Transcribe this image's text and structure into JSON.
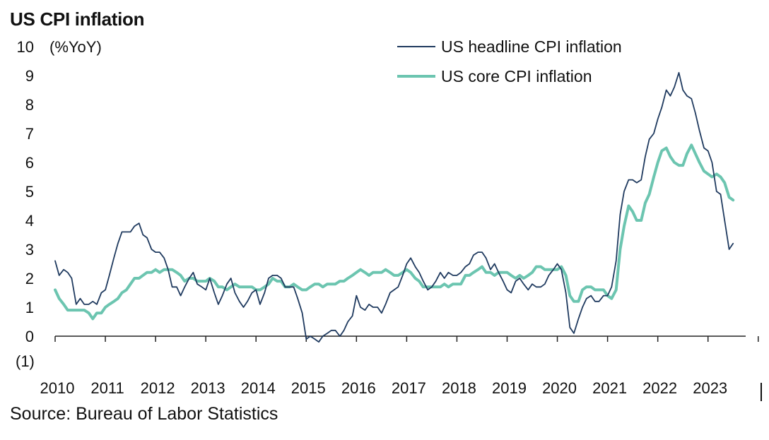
{
  "title": "US CPI inflation",
  "source": "Source: Bureau of Labor Statistics",
  "chart_data": {
    "type": "line",
    "title": "US CPI inflation",
    "ylabel": "(%YoY)",
    "xlabel": "",
    "ylim": [
      -1,
      10
    ],
    "xlim": [
      2010.0,
      2023.75
    ],
    "y_ticks": [
      -1,
      0,
      1,
      2,
      3,
      4,
      5,
      6,
      7,
      8,
      9,
      10
    ],
    "y_tick_labels": [
      "(1)",
      "0",
      "1",
      "2",
      "3",
      "4",
      "5",
      "6",
      "7",
      "8",
      "9",
      "10"
    ],
    "x_tick_labels": [
      "2010",
      "2011",
      "2012",
      "2013",
      "2014",
      "2015",
      "2016",
      "2017",
      "2018",
      "2019",
      "2020",
      "2021",
      "2022",
      "2023"
    ],
    "grid": false,
    "legend_position": "top-right",
    "series": [
      {
        "name": "US headline CPI inflation",
        "color": "#1f3a5f",
        "line_width": "thin",
        "x": [
          2010.0,
          2010.08,
          2010.17,
          2010.25,
          2010.33,
          2010.42,
          2010.5,
          2010.58,
          2010.67,
          2010.75,
          2010.83,
          2010.92,
          2011.0,
          2011.08,
          2011.17,
          2011.25,
          2011.33,
          2011.42,
          2011.5,
          2011.58,
          2011.67,
          2011.75,
          2011.83,
          2011.92,
          2012.0,
          2012.08,
          2012.17,
          2012.25,
          2012.33,
          2012.42,
          2012.5,
          2012.58,
          2012.67,
          2012.75,
          2012.83,
          2012.92,
          2013.0,
          2013.08,
          2013.17,
          2013.25,
          2013.33,
          2013.42,
          2013.5,
          2013.58,
          2013.67,
          2013.75,
          2013.83,
          2013.92,
          2014.0,
          2014.08,
          2014.17,
          2014.25,
          2014.33,
          2014.42,
          2014.5,
          2014.58,
          2014.67,
          2014.75,
          2014.83,
          2014.92,
          2015.0,
          2015.08,
          2015.17,
          2015.25,
          2015.33,
          2015.42,
          2015.5,
          2015.58,
          2015.67,
          2015.75,
          2015.83,
          2015.92,
          2016.0,
          2016.08,
          2016.17,
          2016.25,
          2016.33,
          2016.42,
          2016.5,
          2016.58,
          2016.67,
          2016.75,
          2016.83,
          2016.92,
          2017.0,
          2017.08,
          2017.17,
          2017.25,
          2017.33,
          2017.42,
          2017.5,
          2017.58,
          2017.67,
          2017.75,
          2017.83,
          2017.92,
          2018.0,
          2018.08,
          2018.17,
          2018.25,
          2018.33,
          2018.42,
          2018.5,
          2018.58,
          2018.67,
          2018.75,
          2018.83,
          2018.92,
          2019.0,
          2019.08,
          2019.17,
          2019.25,
          2019.33,
          2019.42,
          2019.5,
          2019.58,
          2019.67,
          2019.75,
          2019.83,
          2019.92,
          2020.0,
          2020.08,
          2020.17,
          2020.25,
          2020.33,
          2020.42,
          2020.5,
          2020.58,
          2020.67,
          2020.75,
          2020.83,
          2020.92,
          2021.0,
          2021.08,
          2021.17,
          2021.25,
          2021.33,
          2021.42,
          2021.5,
          2021.58,
          2021.67,
          2021.75,
          2021.83,
          2021.92,
          2022.0,
          2022.08,
          2022.17,
          2022.25,
          2022.33,
          2022.42,
          2022.5,
          2022.58,
          2022.67,
          2022.75,
          2022.83,
          2022.92,
          2023.0,
          2023.08,
          2023.17,
          2023.25,
          2023.33,
          2023.42,
          2023.5
        ],
        "values": [
          2.6,
          2.1,
          2.3,
          2.2,
          2.0,
          1.1,
          1.3,
          1.1,
          1.1,
          1.2,
          1.1,
          1.5,
          1.6,
          2.1,
          2.7,
          3.2,
          3.6,
          3.6,
          3.6,
          3.8,
          3.9,
          3.5,
          3.4,
          3.0,
          2.9,
          2.9,
          2.7,
          2.3,
          1.7,
          1.7,
          1.4,
          1.7,
          2.0,
          2.2,
          1.8,
          1.7,
          1.6,
          2.0,
          1.5,
          1.1,
          1.4,
          1.8,
          2.0,
          1.5,
          1.2,
          1.0,
          1.2,
          1.5,
          1.6,
          1.1,
          1.5,
          2.0,
          2.1,
          2.1,
          2.0,
          1.7,
          1.7,
          1.7,
          1.3,
          0.8,
          -0.1,
          0.0,
          -0.1,
          -0.2,
          0.0,
          0.1,
          0.2,
          0.2,
          0.0,
          0.2,
          0.5,
          0.7,
          1.4,
          1.0,
          0.9,
          1.1,
          1.0,
          1.0,
          0.8,
          1.1,
          1.5,
          1.6,
          1.7,
          2.1,
          2.5,
          2.7,
          2.4,
          2.2,
          1.9,
          1.6,
          1.7,
          1.9,
          2.2,
          2.0,
          2.2,
          2.1,
          2.1,
          2.2,
          2.4,
          2.5,
          2.8,
          2.9,
          2.9,
          2.7,
          2.3,
          2.5,
          2.2,
          1.9,
          1.6,
          1.5,
          1.9,
          2.0,
          1.8,
          1.6,
          1.8,
          1.7,
          1.7,
          1.8,
          2.1,
          2.3,
          2.5,
          2.3,
          1.5,
          0.3,
          0.1,
          0.6,
          1.0,
          1.3,
          1.4,
          1.2,
          1.2,
          1.4,
          1.4,
          1.7,
          2.6,
          4.2,
          5.0,
          5.4,
          5.4,
          5.3,
          5.4,
          6.2,
          6.8,
          7.0,
          7.5,
          7.9,
          8.5,
          8.3,
          8.6,
          9.1,
          8.5,
          8.3,
          8.2,
          7.7,
          7.1,
          6.5,
          6.4,
          6.0,
          5.0,
          4.9,
          4.0,
          3.0,
          3.2
        ]
      },
      {
        "name": "US core CPI inflation",
        "color": "#6cc5b0",
        "line_width": "thick",
        "x": [
          2010.0,
          2010.08,
          2010.17,
          2010.25,
          2010.33,
          2010.42,
          2010.5,
          2010.58,
          2010.67,
          2010.75,
          2010.83,
          2010.92,
          2011.0,
          2011.08,
          2011.17,
          2011.25,
          2011.33,
          2011.42,
          2011.5,
          2011.58,
          2011.67,
          2011.75,
          2011.83,
          2011.92,
          2012.0,
          2012.08,
          2012.17,
          2012.25,
          2012.33,
          2012.42,
          2012.5,
          2012.58,
          2012.67,
          2012.75,
          2012.83,
          2012.92,
          2013.0,
          2013.08,
          2013.17,
          2013.25,
          2013.33,
          2013.42,
          2013.5,
          2013.58,
          2013.67,
          2013.75,
          2013.83,
          2013.92,
          2014.0,
          2014.08,
          2014.17,
          2014.25,
          2014.33,
          2014.42,
          2014.5,
          2014.58,
          2014.67,
          2014.75,
          2014.83,
          2014.92,
          2015.0,
          2015.08,
          2015.17,
          2015.25,
          2015.33,
          2015.42,
          2015.5,
          2015.58,
          2015.67,
          2015.75,
          2015.83,
          2015.92,
          2016.0,
          2016.08,
          2016.17,
          2016.25,
          2016.33,
          2016.42,
          2016.5,
          2016.58,
          2016.67,
          2016.75,
          2016.83,
          2016.92,
          2017.0,
          2017.08,
          2017.17,
          2017.25,
          2017.33,
          2017.42,
          2017.5,
          2017.58,
          2017.67,
          2017.75,
          2017.83,
          2017.92,
          2018.0,
          2018.08,
          2018.17,
          2018.25,
          2018.33,
          2018.42,
          2018.5,
          2018.58,
          2018.67,
          2018.75,
          2018.83,
          2018.92,
          2019.0,
          2019.08,
          2019.17,
          2019.25,
          2019.33,
          2019.42,
          2019.5,
          2019.58,
          2019.67,
          2019.75,
          2019.83,
          2019.92,
          2020.0,
          2020.08,
          2020.17,
          2020.25,
          2020.33,
          2020.42,
          2020.5,
          2020.58,
          2020.67,
          2020.75,
          2020.83,
          2020.92,
          2021.0,
          2021.08,
          2021.17,
          2021.25,
          2021.33,
          2021.42,
          2021.5,
          2021.58,
          2021.67,
          2021.75,
          2021.83,
          2021.92,
          2022.0,
          2022.08,
          2022.17,
          2022.25,
          2022.33,
          2022.42,
          2022.5,
          2022.58,
          2022.67,
          2022.75,
          2022.83,
          2022.92,
          2023.0,
          2023.08,
          2023.17,
          2023.25,
          2023.33,
          2023.42,
          2023.5
        ],
        "values": [
          1.6,
          1.3,
          1.1,
          0.9,
          0.9,
          0.9,
          0.9,
          0.9,
          0.8,
          0.6,
          0.8,
          0.8,
          1.0,
          1.1,
          1.2,
          1.3,
          1.5,
          1.6,
          1.8,
          2.0,
          2.0,
          2.1,
          2.2,
          2.2,
          2.3,
          2.2,
          2.3,
          2.3,
          2.3,
          2.2,
          2.1,
          1.9,
          2.0,
          2.0,
          1.9,
          1.9,
          1.9,
          2.0,
          1.9,
          1.7,
          1.7,
          1.6,
          1.7,
          1.8,
          1.7,
          1.7,
          1.7,
          1.7,
          1.6,
          1.6,
          1.7,
          1.8,
          2.0,
          1.9,
          1.9,
          1.7,
          1.7,
          1.8,
          1.7,
          1.6,
          1.6,
          1.7,
          1.8,
          1.8,
          1.7,
          1.8,
          1.8,
          1.8,
          1.9,
          1.9,
          2.0,
          2.1,
          2.2,
          2.3,
          2.2,
          2.1,
          2.2,
          2.2,
          2.2,
          2.3,
          2.2,
          2.1,
          2.1,
          2.2,
          2.3,
          2.2,
          2.0,
          1.9,
          1.7,
          1.7,
          1.7,
          1.7,
          1.7,
          1.8,
          1.7,
          1.8,
          1.8,
          1.8,
          2.1,
          2.1,
          2.2,
          2.3,
          2.4,
          2.2,
          2.2,
          2.1,
          2.2,
          2.2,
          2.2,
          2.1,
          2.0,
          2.1,
          2.0,
          2.1,
          2.2,
          2.4,
          2.4,
          2.3,
          2.3,
          2.3,
          2.3,
          2.4,
          2.1,
          1.4,
          1.2,
          1.2,
          1.6,
          1.7,
          1.7,
          1.6,
          1.6,
          1.6,
          1.4,
          1.3,
          1.6,
          3.0,
          3.8,
          4.5,
          4.3,
          4.0,
          4.0,
          4.6,
          4.9,
          5.5,
          6.0,
          6.4,
          6.5,
          6.2,
          6.0,
          5.9,
          5.9,
          6.3,
          6.6,
          6.3,
          6.0,
          5.7,
          5.6,
          5.5,
          5.6,
          5.5,
          5.3,
          4.8,
          4.7
        ]
      }
    ]
  }
}
